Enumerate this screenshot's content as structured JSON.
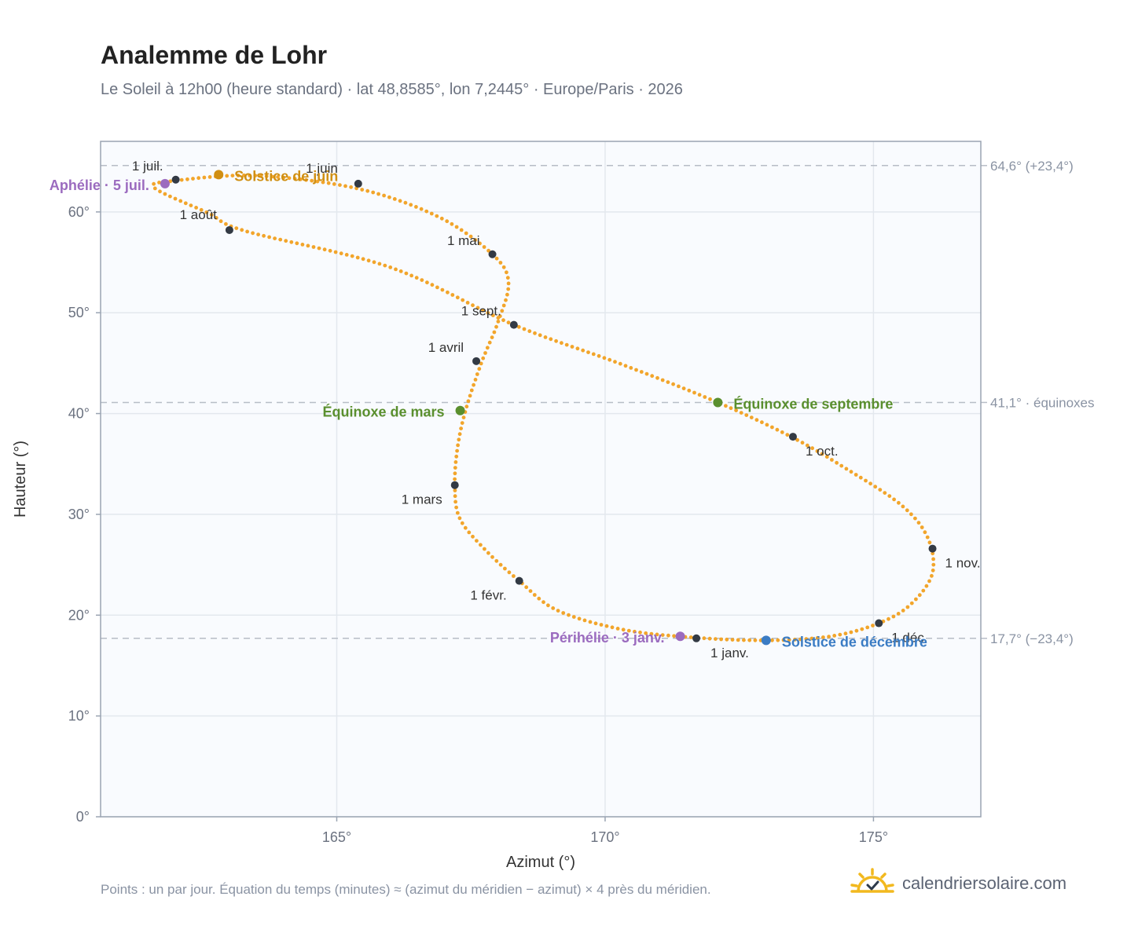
{
  "title": "Analemme de Lohr",
  "subtitle": "Le Soleil à 12h00 (heure standard) · lat 48,8585°, lon 7,2445° · Europe/Paris · 2026",
  "footer": "Points : un par jour. Équation du temps (minutes) ≈ (azimut du méridien − azimut) × 4 près du méridien.",
  "brand": {
    "name": "calendriersolaire.com",
    "icon": "sun-check-icon"
  },
  "colors": {
    "curve": "#f2a52b",
    "month_marker": "#333a44",
    "equinox": "#5a8f2e",
    "june_solstice": "#d08f12",
    "december_solstice": "#3b7cc4",
    "apsis": "#9b6bbf",
    "plot_bg": "#f9fbfe",
    "grid": "#e3e8ee",
    "ref_line": "#b7bdc6"
  },
  "chart_data": {
    "type": "scatter",
    "xlabel": "Azimut (°)",
    "ylabel": "Hauteur (°)",
    "xlim": [
      160.6,
      177.0
    ],
    "ylim": [
      0,
      67
    ],
    "x_ticks": [
      {
        "value": 165,
        "label": "165°"
      },
      {
        "value": 170,
        "label": "170°"
      },
      {
        "value": 175,
        "label": "175°"
      }
    ],
    "y_ticks": [
      {
        "value": 0,
        "label": "0°"
      },
      {
        "value": 10,
        "label": "10°"
      },
      {
        "value": 20,
        "label": "20°"
      },
      {
        "value": 30,
        "label": "30°"
      },
      {
        "value": 40,
        "label": "40°"
      },
      {
        "value": 50,
        "label": "50°"
      },
      {
        "value": 60,
        "label": "60°"
      }
    ],
    "grid": true,
    "reference_lines": [
      {
        "y": 64.6,
        "label": "64,6° (+23,4°)"
      },
      {
        "y": 41.1,
        "label": "41,1° · équinoxes"
      },
      {
        "y": 17.7,
        "label": "17,7° (−23,4°)"
      }
    ],
    "curve_points": [
      [
        171.6,
        17.8
      ],
      [
        170.3,
        18.6
      ],
      [
        169.1,
        20.5
      ],
      [
        168.4,
        23.4
      ],
      [
        167.8,
        26.3
      ],
      [
        167.3,
        29.5
      ],
      [
        167.2,
        32.8
      ],
      [
        167.25,
        36.6
      ],
      [
        167.4,
        40.3
      ],
      [
        167.7,
        45.1
      ],
      [
        168.0,
        49.0
      ],
      [
        168.2,
        53.0
      ],
      [
        167.9,
        55.8
      ],
      [
        166.9,
        59.5
      ],
      [
        165.4,
        62.3
      ],
      [
        163.5,
        63.6
      ],
      [
        162.0,
        63.1
      ],
      [
        161.6,
        62.4
      ],
      [
        162.6,
        59.9
      ],
      [
        163.3,
        58.1
      ],
      [
        166.0,
        54.5
      ],
      [
        168.3,
        48.8
      ],
      [
        170.3,
        44.9
      ],
      [
        172.1,
        41.1
      ],
      [
        173.5,
        37.6
      ],
      [
        174.5,
        34.5
      ],
      [
        175.5,
        31.0
      ],
      [
        176.0,
        27.8
      ],
      [
        176.1,
        24.2
      ],
      [
        175.7,
        21.1
      ],
      [
        175.1,
        19.2
      ],
      [
        174.2,
        17.9
      ],
      [
        173.0,
        17.5
      ],
      [
        171.6,
        17.8
      ]
    ],
    "month_markers": [
      {
        "label": "1 janv.",
        "x": 171.7,
        "y": 17.7
      },
      {
        "label": "1 févr.",
        "x": 168.4,
        "y": 23.4
      },
      {
        "label": "1 mars",
        "x": 167.2,
        "y": 32.9
      },
      {
        "label": "1 avril",
        "x": 167.6,
        "y": 45.2
      },
      {
        "label": "1 mai",
        "x": 167.9,
        "y": 55.8
      },
      {
        "label": "1 juin",
        "x": 165.4,
        "y": 62.8
      },
      {
        "label": "1 juil.",
        "x": 162.0,
        "y": 63.2
      },
      {
        "label": "1 août",
        "x": 163.0,
        "y": 58.2
      },
      {
        "label": "1 sept.",
        "x": 168.3,
        "y": 48.8
      },
      {
        "label": "1 oct.",
        "x": 173.5,
        "y": 37.7
      },
      {
        "label": "1 nov.",
        "x": 176.1,
        "y": 26.6
      },
      {
        "label": "1 déc.",
        "x": 175.1,
        "y": 19.2
      }
    ],
    "events": [
      {
        "label": "Solstice de juin",
        "x": 162.8,
        "y": 63.7,
        "kind": "june_solstice"
      },
      {
        "label": "Aphélie · 5 juil.",
        "x": 161.8,
        "y": 62.8,
        "kind": "apsis"
      },
      {
        "label": "Équinoxe de mars",
        "x": 167.3,
        "y": 40.3,
        "kind": "equinox"
      },
      {
        "label": "Équinoxe de septembre",
        "x": 172.1,
        "y": 41.1,
        "kind": "equinox"
      },
      {
        "label": "Périhélie · 3 janv.",
        "x": 171.4,
        "y": 17.9,
        "kind": "apsis"
      },
      {
        "label": "Solstice de décembre",
        "x": 173.0,
        "y": 17.5,
        "kind": "december_solstice"
      }
    ]
  }
}
